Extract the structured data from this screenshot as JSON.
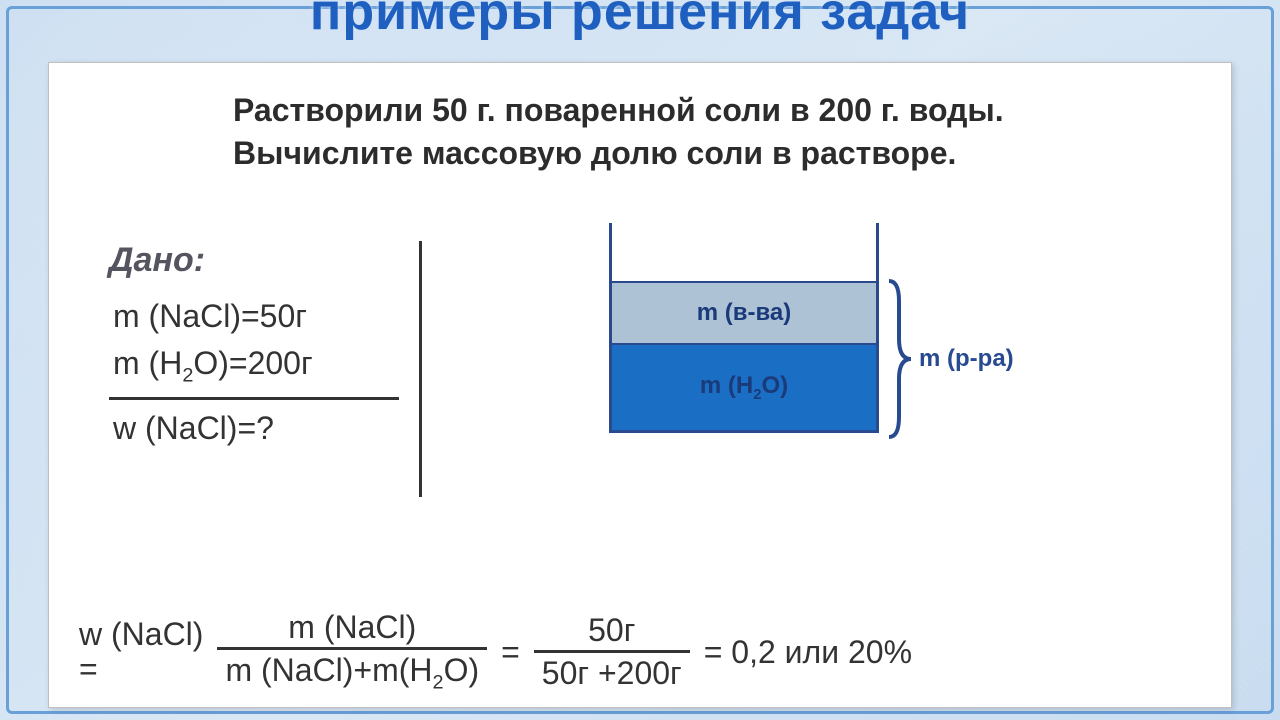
{
  "header": {
    "title_fragment": "примеры решения задач"
  },
  "problem": {
    "text": "Растворили 50 г. поваренной соли в 200 г. воды. Вычислите массовую долю соли в растворе."
  },
  "given": {
    "title": "Дано:",
    "lines": {
      "l1_pre": "m (NaCl)=50г",
      "l2_prefix": "m (H",
      "l2_sub": "2",
      "l2_suffix": "O)=200г",
      "q": "w (NaCl)=?"
    }
  },
  "beaker": {
    "colors": {
      "air": "#ffffff",
      "solute": "#aec2d6",
      "water": "#1a6fc4",
      "border": "#294a8f",
      "text": "#1a3a7a"
    },
    "heights_pct": {
      "air": 28,
      "solute": 30,
      "water": 42
    },
    "labels": {
      "solute": "m (в-ва)",
      "water_prefix": "m (H",
      "water_sub": "2",
      "water_suffix": "O)",
      "brace": "m (р-ра)"
    }
  },
  "equation": {
    "lhs": "w (NaCl)",
    "lhs_eq": "=",
    "frac1": {
      "num": "m (NaCl)",
      "den_prefix": "m (NaCl)+m(H",
      "den_sub": "2",
      "den_suffix": "O)"
    },
    "mid_eq": "=",
    "frac2": {
      "num": "50г",
      "den": "50г +200г"
    },
    "result": "= 0,2 или 20%"
  }
}
